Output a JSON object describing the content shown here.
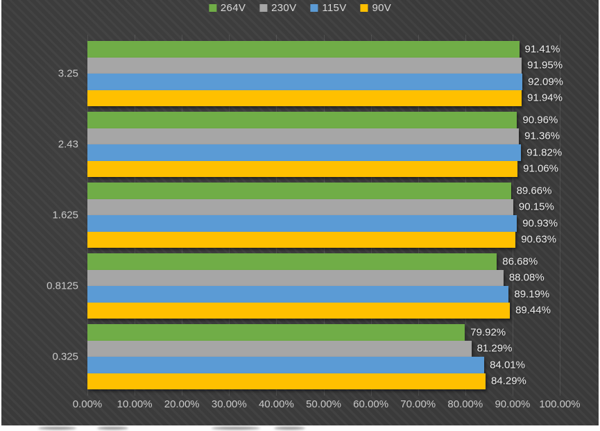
{
  "chart_data": {
    "type": "bar",
    "orientation": "horizontal",
    "title": "",
    "categories": [
      "3.25",
      "2.43",
      "1.625",
      "0.8125",
      "0.325"
    ],
    "series": [
      {
        "name": "264V",
        "color": "#70AD47",
        "values": [
          91.41,
          90.96,
          89.66,
          86.68,
          79.92
        ]
      },
      {
        "name": "230V",
        "color": "#A6A6A6",
        "values": [
          91.95,
          91.36,
          90.15,
          88.08,
          81.29
        ]
      },
      {
        "name": "115V",
        "color": "#5B9BD5",
        "values": [
          92.09,
          91.82,
          90.93,
          89.19,
          84.01
        ]
      },
      {
        "name": "90V",
        "color": "#FFC000",
        "values": [
          91.94,
          91.06,
          90.63,
          89.44,
          84.29
        ]
      }
    ],
    "x_axis": {
      "ticks": [
        "0.00%",
        "10.00%",
        "20.00%",
        "30.00%",
        "40.00%",
        "50.00%",
        "60.00%",
        "70.00%",
        "80.00%",
        "90.00%",
        "100.00%"
      ],
      "min": 0,
      "max": 100
    },
    "data_labels": {
      "visible": true,
      "format": "0.00%",
      "position": "outside-end"
    },
    "grid": "vertical-major",
    "legend_position": "top",
    "background_color": "#3E3E3E",
    "data_label_color": "#EFEFEF",
    "axis_label_color": "#C9C9C9"
  }
}
